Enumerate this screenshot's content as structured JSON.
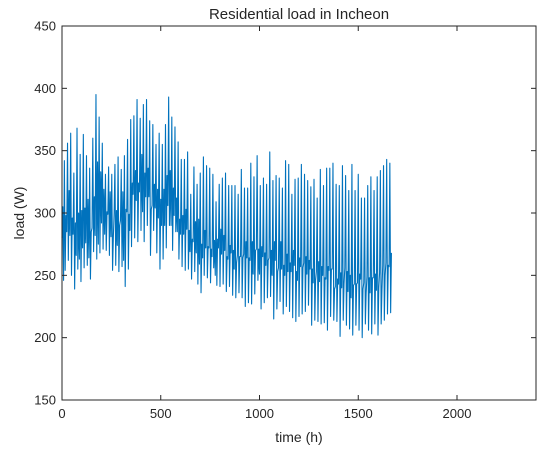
{
  "chart_data": {
    "type": "line",
    "title": "Residential load in Incheon",
    "xlabel": "time (h)",
    "ylabel": "load (W)",
    "xlim": [
      0,
      2400
    ],
    "ylim": [
      150,
      450
    ],
    "xticks": [
      0,
      500,
      1000,
      1500,
      2000
    ],
    "yticks": [
      150,
      200,
      250,
      300,
      350,
      400,
      450
    ],
    "grid": false,
    "series_color": "#0072bd",
    "series": [
      {
        "sampling_interval_h": 4,
        "values": [
          280,
          305,
          246,
          342,
          254,
          298,
          285,
          356,
          262,
          318,
          282,
          364,
          250,
          296,
          283,
          332,
          239,
          292,
          266,
          368,
          255,
          300,
          263,
          347,
          245,
          302,
          272,
          363,
          256,
          304,
          276,
          346,
          258,
          311,
          264,
          336,
          247,
          285,
          288,
          360,
          269,
          313,
          282,
          395,
          263,
          341,
          275,
          377,
          268,
          333,
          292,
          356,
          271,
          319,
          283,
          331,
          270,
          301,
          299,
          337,
          266,
          317,
          281,
          331,
          254,
          281,
          300,
          339,
          258,
          302,
          274,
          345,
          253,
          290,
          294,
          335,
          257,
          317,
          262,
          346,
          241,
          303,
          301,
          359,
          255,
          299,
          286,
          375,
          273,
          324,
          315,
          378,
          280,
          334,
          310,
          391,
          277,
          324,
          317,
          376,
          286,
          347,
          301,
          387,
          277,
          332,
          313,
          391,
          290,
          336,
          313,
          374,
          266,
          303,
          306,
          371,
          286,
          323,
          304,
          355,
          268,
          319,
          296,
          364,
          255,
          311,
          290,
          355,
          263,
          319,
          290,
          371,
          272,
          330,
          306,
          393,
          290,
          334,
          290,
          377,
          270,
          320,
          298,
          369,
          285,
          312,
          285,
          357,
          263,
          295,
          283,
          343,
          257,
          298,
          283,
          343,
          254,
          303,
          287,
          349,
          255,
          286,
          269,
          315,
          247,
          279,
          277,
          337,
          253,
          293,
          268,
          323,
          243,
          295,
          259,
          332,
          236,
          275,
          264,
          345,
          250,
          286,
          272,
          338,
          248,
          273,
          272,
          336,
          244,
          271,
          265,
          331,
          256,
          278,
          250,
          309,
          242,
          279,
          272,
          323,
          241,
          287,
          267,
          328,
          243,
          282,
          270,
          332,
          237,
          265,
          263,
          322,
          241,
          274,
          268,
          322,
          234,
          270,
          255,
          322,
          232,
          260,
          266,
          315,
          236,
          265,
          265,
          335,
          232,
          264,
          267,
          320,
          225,
          277,
          264,
          320,
          228,
          264,
          262,
          340,
          227,
          277,
          251,
          329,
          235,
          270,
          271,
          346,
          246,
          271,
          251,
          322,
          223,
          273,
          265,
          328,
          228,
          268,
          258,
          323,
          232,
          262,
          264,
          349,
          233,
          270,
          250,
          326,
          215,
          277,
          262,
          330,
          223,
          253,
          256,
          328,
          229,
          277,
          255,
          320,
          219,
          258,
          250,
          342,
          225,
          267,
          253,
          339,
          221,
          260,
          253,
          315,
          216,
          270,
          258,
          327,
          213,
          253,
          246,
          328,
          217,
          264,
          257,
          339,
          219,
          256,
          260,
          331,
          221,
          265,
          251,
          326,
          226,
          262,
          255,
          321,
          210,
          255,
          244,
          327,
          214,
          246,
          253,
          312,
          213,
          261,
          245,
          335,
          211,
          257,
          250,
          322,
          212,
          248,
          247,
          336,
          206,
          257,
          254,
          336,
          217,
          255,
          255,
          340,
          214,
          239,
          241,
          323,
          213,
          247,
          243,
          322,
          201,
          252,
          240,
          338,
          214,
          243,
          256,
          330,
          210,
          253,
          237,
          318,
          207,
          250,
          232,
          339,
          202,
          242,
          243,
          318,
          210,
          243,
          244,
          331,
          206,
          251,
          247,
          312,
          200,
          239,
          244,
          312,
          211,
          236,
          249,
          322,
          206,
          248,
          236,
          329,
          203,
          248,
          248,
          318,
          211,
          251,
          238,
          329,
          202,
          240,
          252,
          334,
          211,
          238,
          258,
          338,
          214,
          250,
          260,
          343,
          219,
          258,
          257,
          340,
          220,
          268
        ]
      }
    ]
  }
}
